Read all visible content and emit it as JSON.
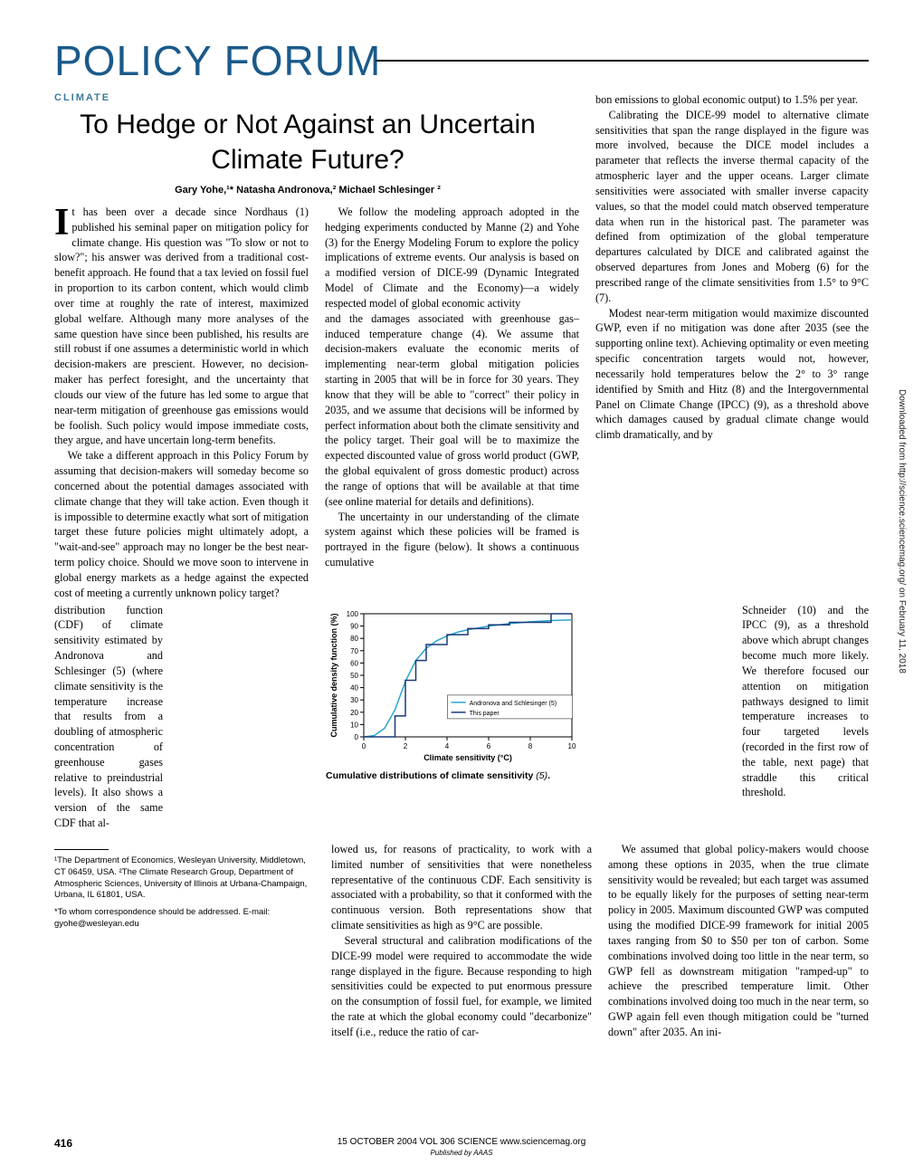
{
  "section_header": "POLICY FORUM",
  "category": "CLIMATE",
  "title": "To Hedge or Not Against an Uncertain Climate Future?",
  "authors": "Gary Yohe,¹* Natasha Andronova,² Michael Schlesinger ²",
  "col1_p1": "t has been over a decade since Nordhaus (1) published his seminal paper on mitigation policy for climate change. His question was \"To slow or not to slow?\"; his answer was derived from a traditional cost-benefit approach. He found that a tax levied on fossil fuel in proportion to its carbon content, which would climb over time at roughly the rate of interest, maximized global welfare. Although many more analyses of the same question have since been published, his results are still robust if one assumes a deterministic world in which decision-makers are prescient. However, no decision-maker has perfect foresight, and the uncertainty that clouds our view of the future has led some to argue that near-term mitigation of greenhouse gas emissions would be foolish. Such policy would impose immediate costs, they argue, and have uncertain long-term benefits.",
  "col1_p2": "We take a different approach in this Policy Forum by assuming that decision-makers will someday become so concerned about the potential damages associated with climate change that they will take action. Even though it is impossible to determine exactly what sort of mitigation target these future policies might ultimately adopt, a \"wait-and-see\" approach may no longer be the best near-term policy choice. Should we move soon to intervene in global energy markets as a hedge against the expected cost of meeting a currently unknown policy target?",
  "col1_p3": "We follow the modeling approach adopted in the hedging experiments conducted by Manne (2) and Yohe (3) for the Energy Modeling Forum to explore the policy implications of extreme events. Our analysis is based on a modified version of DICE-99 (Dynamic Integrated Model of Climate and the Economy)—a widely respected model of global economic activity",
  "col2_p1": "and the damages associated with greenhouse gas–induced temperature change (4). We assume that decision-makers evaluate the economic merits of implementing near-term global mitigation policies starting in 2005 that will be in force for 30 years. They know that they will be able to \"correct\" their policy in 2035, and we assume that decisions will be informed by perfect information about both the climate sensitivity and the policy target. Their goal will be to maximize the expected discounted value of gross world product (GWP, the global equivalent of gross domestic product) across the range of options that will be available at that time (see online material for details and definitions).",
  "col2_p2": "The uncertainty in our understanding of the climate system against which these policies will be framed is portrayed in the figure (below). It shows a continuous cumulative",
  "col3_p1": "bon emissions to global economic output) to 1.5% per year.",
  "col3_p2": "Calibrating the DICE-99 model to alternative climate sensitivities that span the range displayed in the figure was more involved, because the DICE model includes a parameter that reflects the inverse thermal capacity of the atmospheric layer and the upper oceans. Larger climate sensitivities were associated with smaller inverse capacity values, so that the model could match observed temperature data when run in the historical past. The parameter was defined from optimization of the global temperature departures calculated by DICE and calibrated against the observed departures from Jones and Moberg (6) for the prescribed range of the climate sensitivities from 1.5° to 9°C (7).",
  "col3_p3": "Modest near-term mitigation would maximize discounted GWP, even if no mitigation was done after 2035 (see the supporting online text). Achieving optimality or even meeting specific concentration targets would not, however, necessarily hold temperatures below the 2° to 3° range identified by Smith and Hitz (8) and the Intergovernmental Panel on Climate Change (IPCC) (9), as a threshold above which damages caused by gradual climate change would climb dramatically, and by",
  "narrow_left": "distribution function (CDF) of climate sensitivity estimated by Andronova and Schlesinger (5) (where climate sensitivity is the temperature increase that results from a doubling of atmospheric concentration of greenhouse gases relative to preindustrial levels). It also shows a version of the same CDF that al-",
  "narrow_right": "Schneider (10) and the IPCC (9), as a threshold above which abrupt changes become much more likely. We therefore focused our attention on mitigation pathways designed to limit temperature increases to four targeted levels (recorded in the first row of the table, next page) that straddle this critical threshold.",
  "col1_b": "lowed us, for reasons of practicality, to work with a limited number of sensitivities that were nonetheless representative of the continuous CDF. Each sensitivity is associated with a probability, so that it conformed with the continuous version. Both representations show that climate sensitivities as high as 9°C are possible.",
  "col1_b2": "Several structural and calibration modifications of the DICE-99 model were required to accommodate the wide range displayed in the figure. Because responding to high sensitivities could be expected to put enormous pressure on the consumption of fossil fuel, for example, we limited the rate at which the global economy could \"decarbonize\" itself (i.e., reduce the ratio of car-",
  "col3_b": "We assumed that global policy-makers would choose among these options in 2035, when the true climate sensitivity would be revealed; but each target was assumed to be equally likely for the purposes of setting near-term policy in 2005. Maximum discounted GWP was computed using the modified DICE-99 framework for initial 2005 taxes ranging from $0 to $50 per ton of carbon. Some combinations involved doing too little in the near term, so GWP fell as downstream mitigation \"ramped-up\" to achieve the prescribed temperature limit. Other combinations involved doing too much in the near term, so GWP again fell even though mitigation could be \"turned down\" after 2035. An ini-",
  "fn1": "¹The Department of Economics, Wesleyan University, Middletown, CT 06459, USA. ²The Climate Research Group, Department of Atmospheric Sciences, University of Illinois at Urbana-Champaign, Urbana, IL 61801, USA.",
  "fn2": "*To whom correspondence should be addressed. E-mail: gyohe@wesleyan.edu",
  "chart": {
    "xlabel": "Climate sensitivity (°C)",
    "ylabel": "Cumulative density function (%)",
    "xlim": [
      0,
      10
    ],
    "ylim": [
      0,
      100
    ],
    "xticks": [
      0,
      2,
      4,
      6,
      8,
      10
    ],
    "yticks": [
      0,
      10,
      20,
      30,
      40,
      50,
      60,
      70,
      80,
      90,
      100
    ],
    "series": [
      {
        "name": "Andronova and Schlesinger (5)",
        "color": "#2aa5cc",
        "points": [
          [
            0,
            0
          ],
          [
            0.5,
            1
          ],
          [
            1,
            7
          ],
          [
            1.5,
            22
          ],
          [
            2,
            45
          ],
          [
            2.5,
            62
          ],
          [
            3,
            72
          ],
          [
            3.5,
            78
          ],
          [
            4,
            82
          ],
          [
            4.5,
            85
          ],
          [
            5,
            87
          ],
          [
            6,
            90
          ],
          [
            7,
            92
          ],
          [
            8,
            93.5
          ],
          [
            9,
            94.5
          ],
          [
            10,
            95
          ]
        ]
      },
      {
        "name": "This paper",
        "color": "#1a3a7a",
        "points": [
          [
            0,
            0
          ],
          [
            1.5,
            0
          ],
          [
            1.5,
            17
          ],
          [
            2,
            17
          ],
          [
            2,
            46
          ],
          [
            2.5,
            46
          ],
          [
            2.5,
            62
          ],
          [
            3,
            62
          ],
          [
            3,
            75
          ],
          [
            4,
            75
          ],
          [
            4,
            83
          ],
          [
            5,
            83
          ],
          [
            5,
            88
          ],
          [
            6,
            88
          ],
          [
            6,
            91
          ],
          [
            7,
            91
          ],
          [
            7,
            93
          ],
          [
            9,
            93
          ],
          [
            9,
            100
          ],
          [
            10,
            100
          ]
        ]
      }
    ],
    "caption": "Cumulative distributions of climate sensitivity",
    "caption_ref": "(5)",
    "background": "#ffffff",
    "axis_color": "#000000",
    "tick_fontsize": 8,
    "label_fontsize": 9
  },
  "footer": {
    "page": "416",
    "line": "15 OCTOBER 2004   VOL 306   SCIENCE   www.sciencemag.org",
    "pub": "Published by AAAS"
  },
  "side_text": "Downloaded from http://science.sciencemag.org/ on February 11, 2018"
}
